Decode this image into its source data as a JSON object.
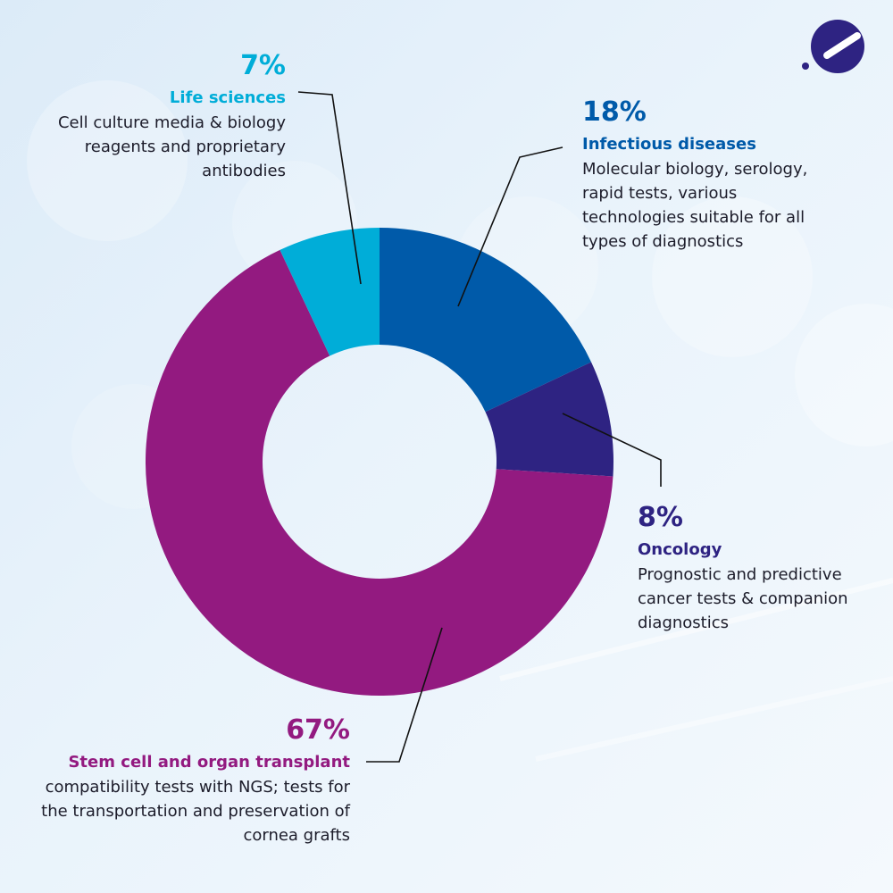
{
  "chart_data": {
    "type": "pie",
    "variant": "donut",
    "slices": [
      {
        "name": "Infectious diseases",
        "value": 18,
        "label": "18%",
        "color": "#005aa9",
        "description": "Molecular biology, serology, rapid tests, various technologies suitable for all types of diagnostics"
      },
      {
        "name": "Oncology",
        "value": 8,
        "label": "8%",
        "color": "#2e2382",
        "description": "Prognostic and predictive cancer tests & companion diagnostics"
      },
      {
        "name": "Stem cell and organ transplant",
        "value": 67,
        "label": "67%",
        "color": "#931a80",
        "description": "compatibility tests with NGS; tests for the transportation and preservation of cornea grafts"
      },
      {
        "name": "Life sciences",
        "value": 7,
        "label": "7%",
        "color": "#00add8",
        "description": "Cell culture media & biology reagents and proprietary antibodies"
      }
    ]
  },
  "logo": {
    "icon": "company-logo-icon",
    "color": "#2e2382"
  }
}
